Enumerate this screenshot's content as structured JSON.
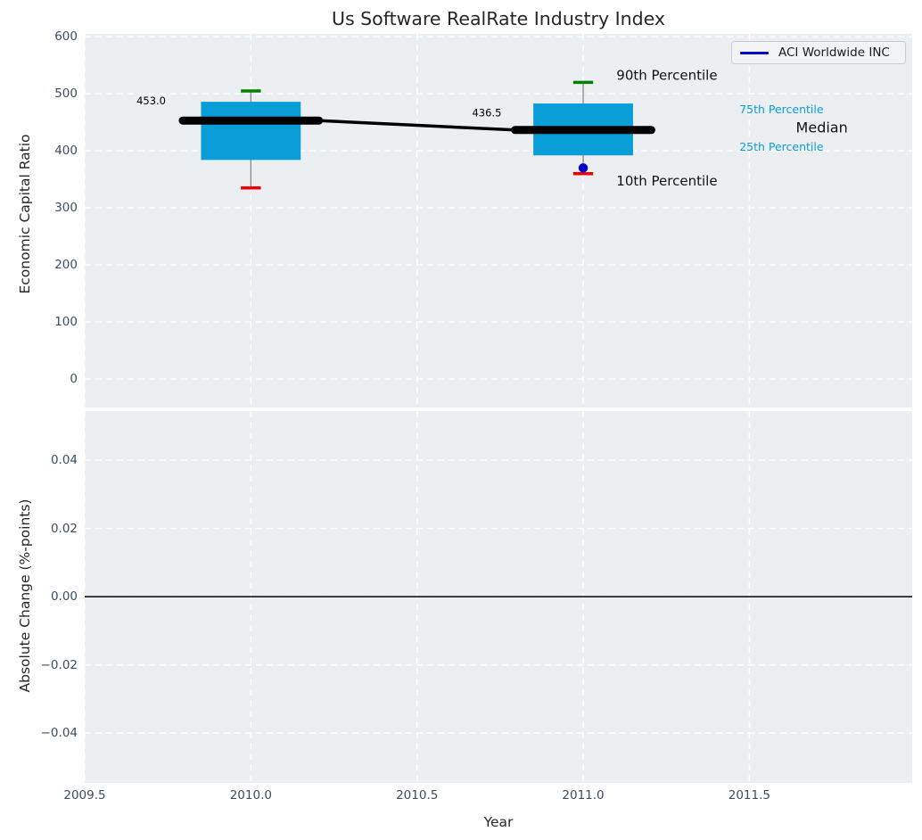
{
  "figure": {
    "title": "Us Software RealRate Industry Index",
    "colors": {
      "background": "#ffffff",
      "axes_background": "#eceff1",
      "grid": "#ffffff",
      "tick_label": "#3b4d63",
      "text": "#262626",
      "box_fill": "#0a9ed9",
      "whisker": "#888888",
      "p90_cap": "#008000",
      "p10_cap": "#ee0000",
      "median_line": "#000000",
      "company": "#0000cd"
    }
  },
  "legend": {
    "entries": [
      {
        "label": "ACI Worldwide INC",
        "color": "#0000cd"
      }
    ]
  },
  "chart_data": [
    {
      "type": "box",
      "title": "Us Software RealRate Industry Index",
      "xlabel": "",
      "ylabel": "Economic Capital Ratio",
      "xlim": [
        2009.5,
        2011.99
      ],
      "ylim": [
        -50,
        605
      ],
      "grid": true,
      "legend_position": "upper right",
      "x_ticks": [
        {
          "v": 2009.5,
          "label": "2009.5"
        },
        {
          "v": 2010.0,
          "label": "2010.0"
        },
        {
          "v": 2010.5,
          "label": "2010.5"
        },
        {
          "v": 2011.0,
          "label": "2011.0"
        },
        {
          "v": 2011.5,
          "label": "2011.5"
        }
      ],
      "y_ticks": [
        {
          "v": 600,
          "label": "600"
        },
        {
          "v": 500,
          "label": "500"
        },
        {
          "v": 400,
          "label": "400"
        },
        {
          "v": 300,
          "label": "300"
        },
        {
          "v": 200,
          "label": "200"
        },
        {
          "v": 100,
          "label": "100"
        },
        {
          "v": 0,
          "label": "0"
        }
      ],
      "box_half_width": 0.15,
      "median_bar_half_width": 0.205,
      "cap_half_width": 0.03,
      "groups": [
        {
          "x": 2010,
          "p90": 505,
          "p75": 486,
          "median": 453.0,
          "p25": 384,
          "p10": 335
        },
        {
          "x": 2011,
          "p90": 520,
          "p75": 483,
          "median": 436.5,
          "p25": 392,
          "p10": 360
        }
      ],
      "median_trend": [
        {
          "x": 2010,
          "y": 453.0
        },
        {
          "x": 2011,
          "y": 436.5
        }
      ],
      "company_series": {
        "name": "ACI Worldwide INC",
        "points": [
          {
            "x": 2011,
            "y": 370
          }
        ]
      },
      "annotations": [
        {
          "text": "453.0",
          "x": 2009.7,
          "y": 488,
          "size": 11.5,
          "color": "#000000",
          "ha": "middle"
        },
        {
          "text": "436.5",
          "x": 2010.71,
          "y": 467,
          "size": 11.5,
          "color": "#000000",
          "ha": "middle"
        },
        {
          "text": "90th Percentile",
          "x": 2011.1,
          "y": 532,
          "size": 15,
          "color": "#111111",
          "ha": "start"
        },
        {
          "text": "75th Percentile",
          "x": 2011.47,
          "y": 473,
          "size": 12.5,
          "color": "#0a9ed9",
          "ha": "start"
        },
        {
          "text": "Median",
          "x": 2011.64,
          "y": 441,
          "size": 16,
          "color": "#111111",
          "ha": "start"
        },
        {
          "text": "25th Percentile",
          "x": 2011.47,
          "y": 407,
          "size": 12.5,
          "color": "#0a9ed9",
          "ha": "start"
        },
        {
          "text": "10th Percentile",
          "x": 2011.1,
          "y": 347,
          "size": 15,
          "color": "#111111",
          "ha": "start"
        }
      ]
    },
    {
      "type": "line",
      "title": "",
      "xlabel": "Year",
      "ylabel": "Absolute Change (%-points)",
      "xlim": [
        2009.5,
        2011.99
      ],
      "ylim": [
        -0.0546,
        0.0544
      ],
      "grid": true,
      "zero_line": true,
      "x_ticks": [
        {
          "v": 2009.5,
          "label": "2009.5"
        },
        {
          "v": 2010.0,
          "label": "2010.0"
        },
        {
          "v": 2010.5,
          "label": "2010.5"
        },
        {
          "v": 2011.0,
          "label": "2011.0"
        },
        {
          "v": 2011.5,
          "label": "2011.5"
        }
      ],
      "y_ticks": [
        {
          "v": 0.04,
          "label": "0.04"
        },
        {
          "v": 0.02,
          "label": "0.02"
        },
        {
          "v": 0.0,
          "label": "0.00"
        },
        {
          "v": -0.02,
          "label": "−0.02"
        },
        {
          "v": -0.04,
          "label": "−0.04"
        }
      ],
      "series": []
    }
  ]
}
